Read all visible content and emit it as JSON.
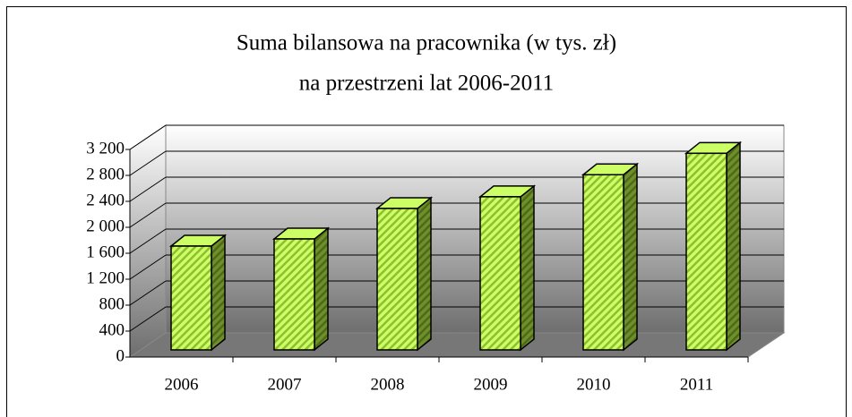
{
  "chart_data": {
    "type": "bar3d",
    "title": [
      "Suma bilansowa na pracownika (w tys. zł)",
      "na przestrzeni lat 2006-2011"
    ],
    "categories": [
      "2006",
      "2007",
      "2008",
      "2009",
      "2010",
      "2011"
    ],
    "values": [
      1600,
      1710,
      2180,
      2360,
      2700,
      3030
    ],
    "color": "#ccff66",
    "ylim": [
      0,
      3200
    ],
    "yticks": [
      0,
      400,
      800,
      {
        "value": 1200,
        "label": "1 200"
      },
      {
        "value": 1600,
        "label": "1 600"
      },
      {
        "value": 2000,
        "label": "2 000"
      },
      {
        "value": 2400,
        "label": "2 400"
      },
      {
        "value": 2800,
        "label": "2 800"
      },
      {
        "value": 3200,
        "label": "3 200"
      }
    ],
    "grid": true
  }
}
